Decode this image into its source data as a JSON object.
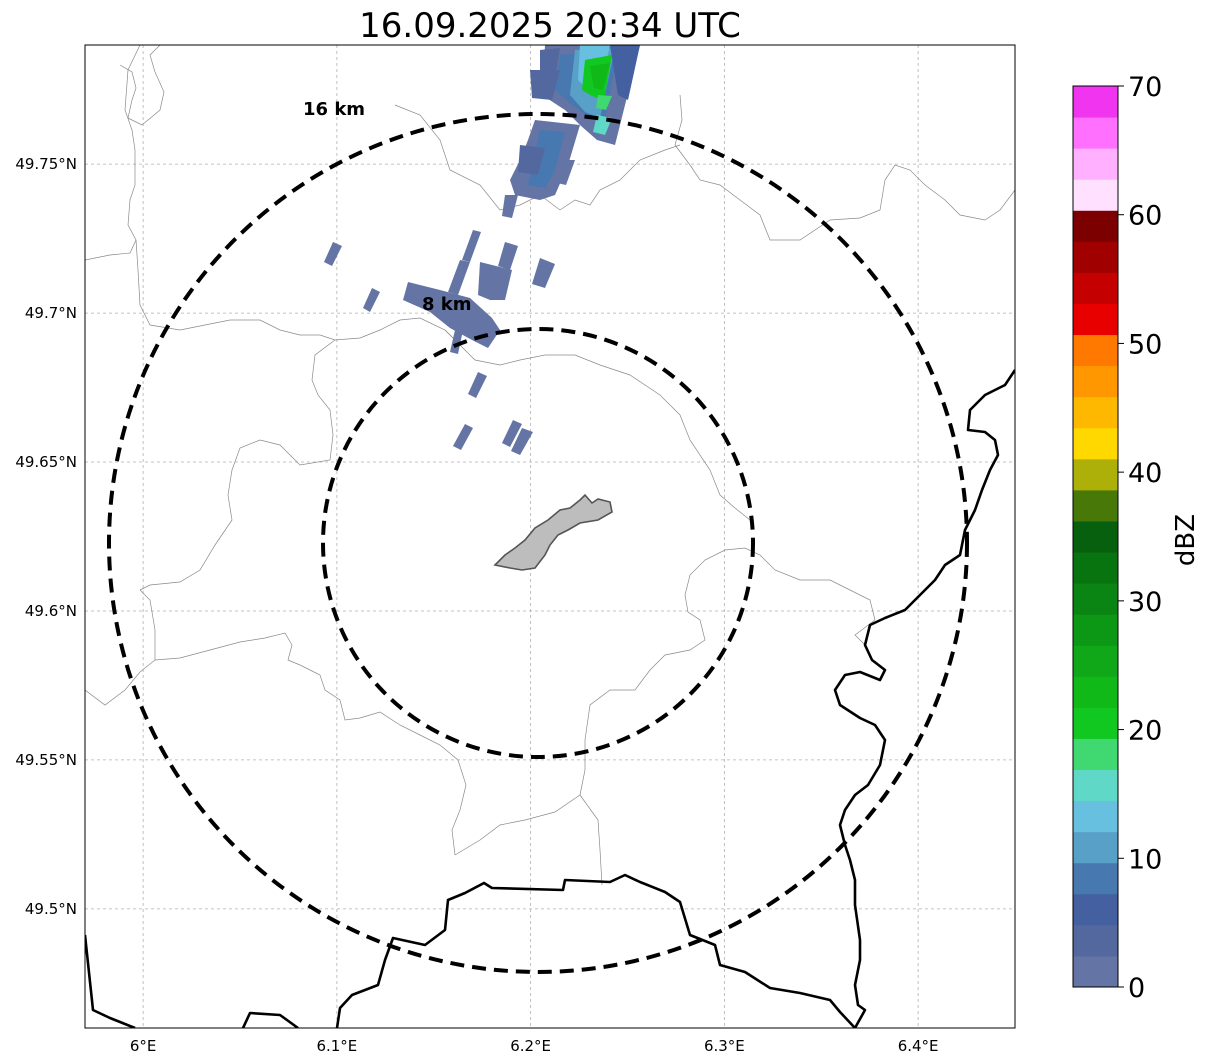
{
  "title": "16.09.2025 20:34 UTC",
  "map": {
    "extent": {
      "lon_min": 5.97,
      "lon_max": 6.45,
      "lat_min": 49.46,
      "lat_max": 49.79
    },
    "lon_ticks": [
      {
        "value": 6.0,
        "label": "6°E"
      },
      {
        "value": 6.1,
        "label": "6.1°E"
      },
      {
        "value": 6.2,
        "label": "6.2°E"
      },
      {
        "value": 6.3,
        "label": "6.3°E"
      },
      {
        "value": 6.4,
        "label": "6.4°E"
      }
    ],
    "lat_ticks": [
      {
        "value": 49.75,
        "label": "49.75°N"
      },
      {
        "value": 49.7,
        "label": "49.7°N"
      },
      {
        "value": 49.65,
        "label": "49.65°N"
      },
      {
        "value": 49.6,
        "label": "49.6°N"
      },
      {
        "value": 49.55,
        "label": "49.55°N"
      },
      {
        "value": 49.5,
        "label": "49.5°N"
      }
    ],
    "range_rings": [
      {
        "label": "8 km",
        "radius_km": 8
      },
      {
        "label": "16 km",
        "radius_km": 16
      }
    ],
    "center_lon": 6.202,
    "center_lat": 49.623,
    "city_label": "",
    "colors": {
      "border": "#000000",
      "admin": "#8a8a8a",
      "city_fill": "#bdbdbd",
      "city_edge": "#555555"
    }
  },
  "colorbar": {
    "label": "dBZ",
    "min": 0,
    "max": 70,
    "ticks": [
      {
        "value": 0,
        "label": "0"
      },
      {
        "value": 10,
        "label": "10"
      },
      {
        "value": 20,
        "label": "20"
      },
      {
        "value": 30,
        "label": "30"
      },
      {
        "value": 40,
        "label": "40"
      },
      {
        "value": 50,
        "label": "50"
      },
      {
        "value": 60,
        "label": "60"
      },
      {
        "value": 70,
        "label": "70"
      }
    ],
    "colors": [
      "#6474a4",
      "#5468a0",
      "#4460a0",
      "#4878b0",
      "#58a0c8",
      "#68c0e0",
      "#60d8c8",
      "#40d870",
      "#10c820",
      "#10b818",
      "#10a818",
      "#0c9814",
      "#0a8412",
      "#087410",
      "#06600e",
      "#487808",
      "#acb008",
      "#ffd800",
      "#ffb800",
      "#ff9800",
      "#ff7800",
      "#e80000",
      "#c40000",
      "#a00000",
      "#7c0000",
      "#ffe0ff",
      "#ffb0ff",
      "#ff70ff",
      "#f034f0"
    ]
  },
  "chart_data": {
    "type": "heatmap",
    "title": "16.09.2025 20:34 UTC",
    "variable": "radar reflectivity",
    "units": "dBZ",
    "value_range": [
      0,
      70
    ],
    "echoes": [
      {
        "area": "north cell core",
        "lon": 6.24,
        "lat": 49.777,
        "dbz": 22
      },
      {
        "area": "north cell edge",
        "lon": 6.236,
        "lat": 49.77,
        "dbz": 17
      },
      {
        "area": "north cell body",
        "lon": 6.22,
        "lat": 49.755,
        "dbz": 8
      },
      {
        "area": "central band",
        "lon": 6.18,
        "lat": 49.71,
        "dbz": 2
      },
      {
        "area": "west fragment",
        "lon": 6.15,
        "lat": 49.7,
        "dbz": 1
      },
      {
        "area": "small scattered echoes",
        "lon": 6.19,
        "lat": 49.655,
        "dbz": 1
      }
    ]
  }
}
